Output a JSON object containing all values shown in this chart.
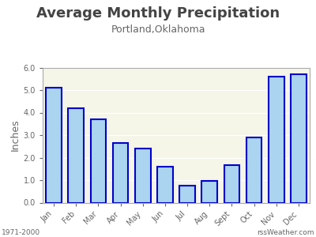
{
  "title": "Average Monthly Precipitation",
  "subtitle": "Portland,Oklahoma",
  "ylabel": "Inches",
  "categories": [
    "Jan",
    "Feb",
    "Mar",
    "Apr",
    "May",
    "Jun",
    "Jul",
    "Aug",
    "Sept",
    "Oct",
    "Nov",
    "Dec"
  ],
  "values": [
    5.1,
    4.2,
    3.7,
    2.65,
    2.4,
    1.6,
    0.75,
    0.95,
    1.65,
    2.9,
    5.6,
    5.7
  ],
  "bar_fill_color": "#aad4f0",
  "bar_edge_color": "#0000cc",
  "ylim": [
    0,
    6.0
  ],
  "yticks": [
    0.0,
    1.0,
    2.0,
    3.0,
    4.0,
    5.0,
    6.0
  ],
  "plot_bg_color": "#f5f5e8",
  "fig_bg_color": "#ffffff",
  "title_fontsize": 13,
  "subtitle_fontsize": 9,
  "ylabel_fontsize": 9,
  "tick_fontsize": 7,
  "bar_edge_linewidth": 1.5,
  "footer_left": "1971-2000",
  "footer_right": "rssWeather.com",
  "footer_fontsize": 6.5,
  "title_color": "#444444",
  "subtitle_color": "#666666",
  "tick_color": "#666666",
  "footer_color": "#666666"
}
